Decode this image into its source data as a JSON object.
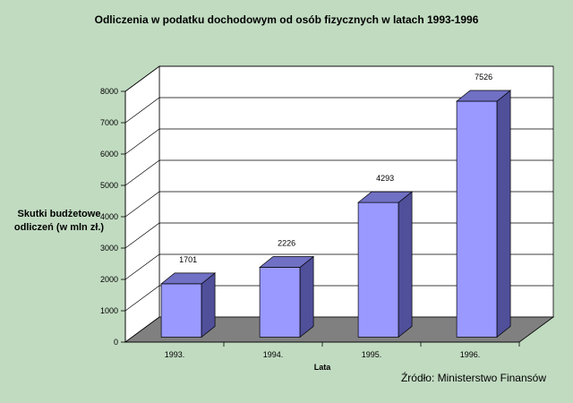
{
  "chart_data": {
    "type": "bar",
    "title": "Odliczenia w podatku dochodowym od osób fizycznych w latach 1993-1996",
    "ylabel_line1": "Skutki budżetowe",
    "ylabel_line2": "odliczeń (w mln zł.)",
    "xlabel": "Lata",
    "categories": [
      "1993.",
      "1994.",
      "1995.",
      "1996."
    ],
    "values": [
      1701,
      2226,
      4293,
      7526
    ],
    "ylim": [
      0,
      8000
    ],
    "yticks": [
      0,
      1000,
      2000,
      3000,
      4000,
      5000,
      6000,
      7000,
      8000
    ],
    "grid": true,
    "style": "3d",
    "colors": {
      "background": "#c1dbc1",
      "bar_front": "#9999ff",
      "bar_side": "#4f4f9a",
      "bar_top": "#7070c4",
      "floor": "#808080",
      "wall": "#ffffff"
    }
  },
  "source": "Źródło: Ministerstwo Finansów"
}
